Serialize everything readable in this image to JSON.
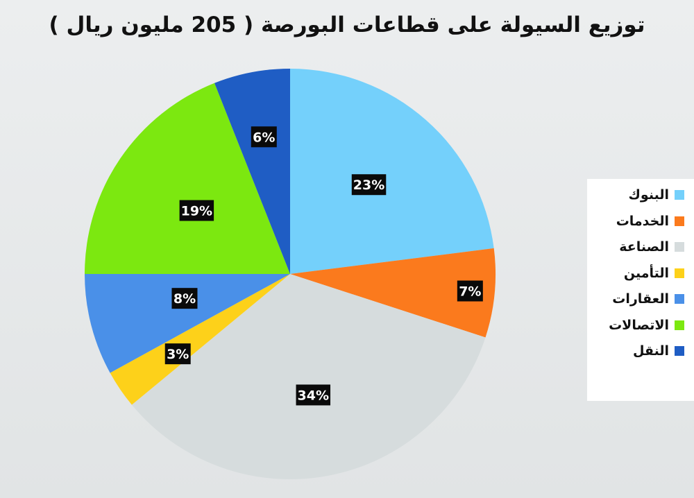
{
  "chart_data": {
    "type": "pie",
    "title": "توزيع السيولة على قطاعات البورصة ( 205 مليون ريال )",
    "categories": [
      "البنوك",
      "الخدمات",
      "الصناعة",
      "التأمين",
      "العقارات",
      "الاتصالات",
      "النقل"
    ],
    "values": [
      23,
      7,
      34,
      3,
      8,
      19,
      6
    ],
    "data_labels": [
      "23%",
      "7%",
      "34%",
      "3%",
      "8%",
      "19%",
      "6%"
    ],
    "colors": [
      "#74d0fb",
      "#fb7a1d",
      "#d6dcdd",
      "#fdd11a",
      "#4a90e8",
      "#7ce810",
      "#1f5dc4"
    ],
    "legend_position": "right"
  }
}
